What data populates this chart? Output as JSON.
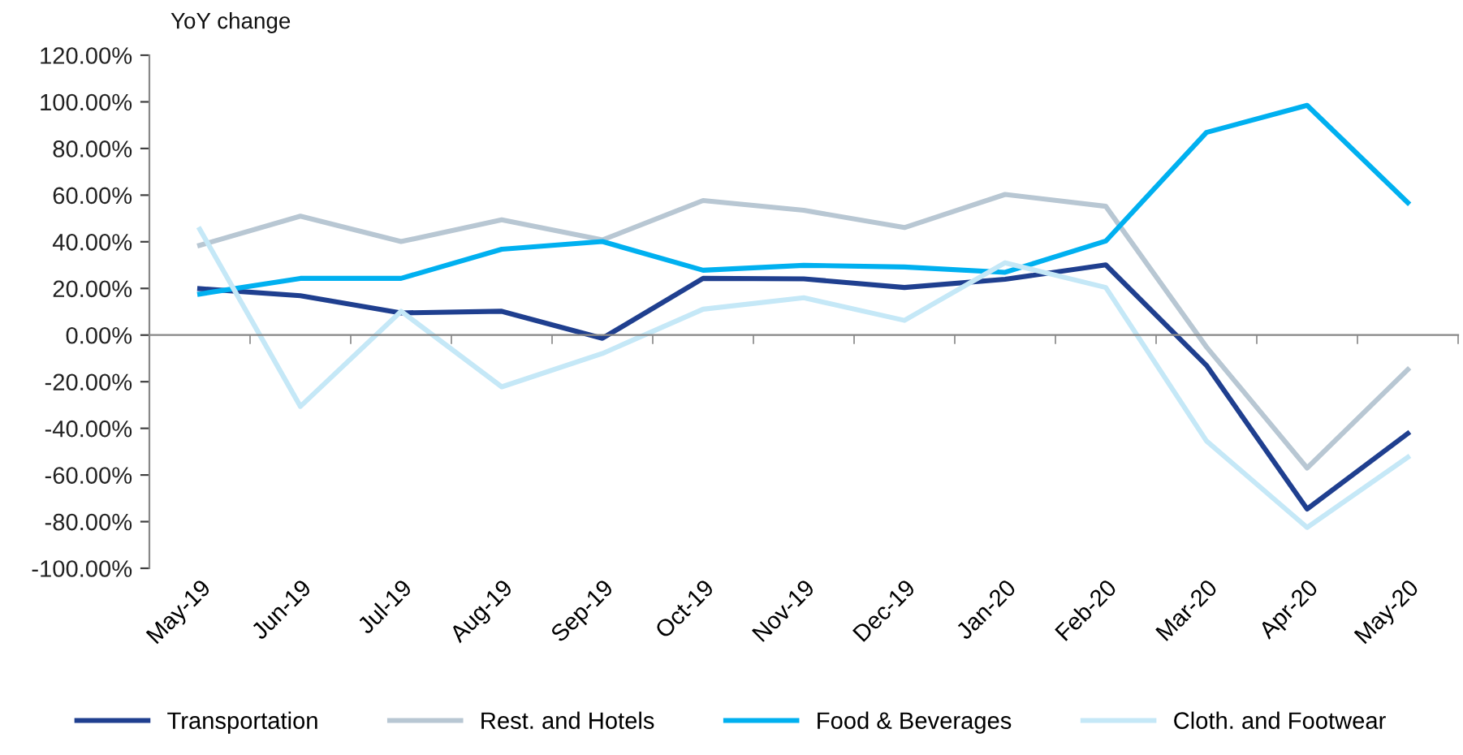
{
  "chart_data": {
    "type": "line",
    "title": "YoY change",
    "categories": [
      "May-19",
      "Jun-19",
      "Jul-19",
      "Aug-19",
      "Sep-19",
      "Oct-19",
      "Nov-19",
      "Dec-19",
      "Jan-20",
      "Feb-20",
      "Mar-20",
      "Apr-20",
      "May-20"
    ],
    "series": [
      {
        "name": "Transportation",
        "color": "#1f3f8f",
        "values": [
          19.9,
          16.9,
          9.5,
          10.2,
          -1.4,
          24.3,
          24.1,
          20.4,
          23.9,
          30.1,
          -13,
          -74.6,
          -42.2
        ]
      },
      {
        "name": "Rest. and Hotels",
        "color": "#b8c7d3",
        "values": [
          38.5,
          51,
          40.1,
          49.4,
          40.8,
          57.7,
          53.5,
          46.1,
          60.3,
          55.2,
          -5.1,
          -57,
          -14.8
        ]
      },
      {
        "name": "Food & Beverages",
        "color": "#00b0f0",
        "values": [
          17.6,
          24.3,
          24.3,
          36.8,
          40.1,
          27.8,
          29.9,
          29.2,
          26.9,
          40.3,
          86.9,
          98.5,
          56.8
        ]
      },
      {
        "name": "Cloth. and Footwear",
        "color": "#c5e8f7",
        "values": [
          45.4,
          -30.6,
          10.2,
          -22.2,
          -7.9,
          11.1,
          16,
          6.3,
          31,
          20.4,
          -45.4,
          -82.5,
          -52.4
        ]
      }
    ],
    "ylim": [
      -100,
      120
    ],
    "yticks": [
      {
        "value": -100,
        "label": "-100.00%"
      },
      {
        "value": -80,
        "label": "-80.00%"
      },
      {
        "value": -60,
        "label": "-60.00%"
      },
      {
        "value": -40,
        "label": "-40.00%"
      },
      {
        "value": -20,
        "label": "-20.00%"
      },
      {
        "value": 0,
        "label": "0.00%"
      },
      {
        "value": 20,
        "label": "20.00%"
      },
      {
        "value": 40,
        "label": "40.00%"
      },
      {
        "value": 60,
        "label": "60.00%"
      },
      {
        "value": 80,
        "label": "80.00%"
      },
      {
        "value": 100,
        "label": "100.00%"
      },
      {
        "value": 120,
        "label": "120.00%"
      }
    ],
    "legend": "bottom",
    "marker": "none",
    "line_style": "solid"
  }
}
